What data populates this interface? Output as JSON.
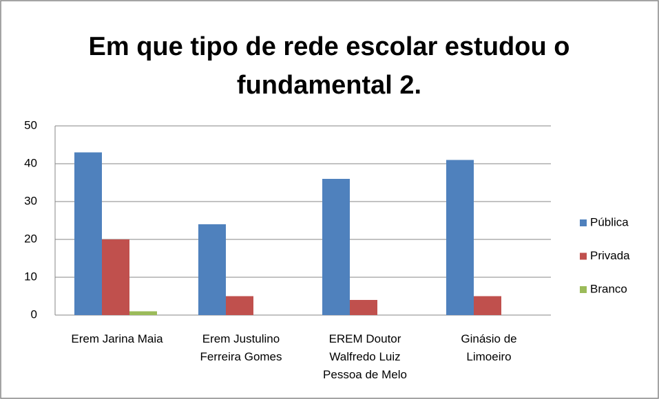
{
  "chart_data": {
    "type": "bar",
    "title": "Em que tipo de rede escolar estudou o fundamental 2.",
    "categories": [
      "Erem Jarina Maia",
      "Erem Justulino Ferreira Gomes",
      "EREM Doutor Walfredo Luiz Pessoa de Melo",
      "Ginásio de Limoeiro"
    ],
    "series": [
      {
        "name": "Pública",
        "color": "#4f81bd",
        "values": [
          43,
          24,
          36,
          41
        ]
      },
      {
        "name": "Privada",
        "color": "#c0504d",
        "values": [
          20,
          5,
          4,
          5
        ]
      },
      {
        "name": "Branco",
        "color": "#9bbb59",
        "values": [
          1,
          0,
          0,
          0
        ]
      }
    ],
    "ylim": [
      0,
      50
    ],
    "yticks": [
      0,
      10,
      20,
      30,
      40,
      50
    ],
    "grid": true,
    "legend": "right"
  }
}
